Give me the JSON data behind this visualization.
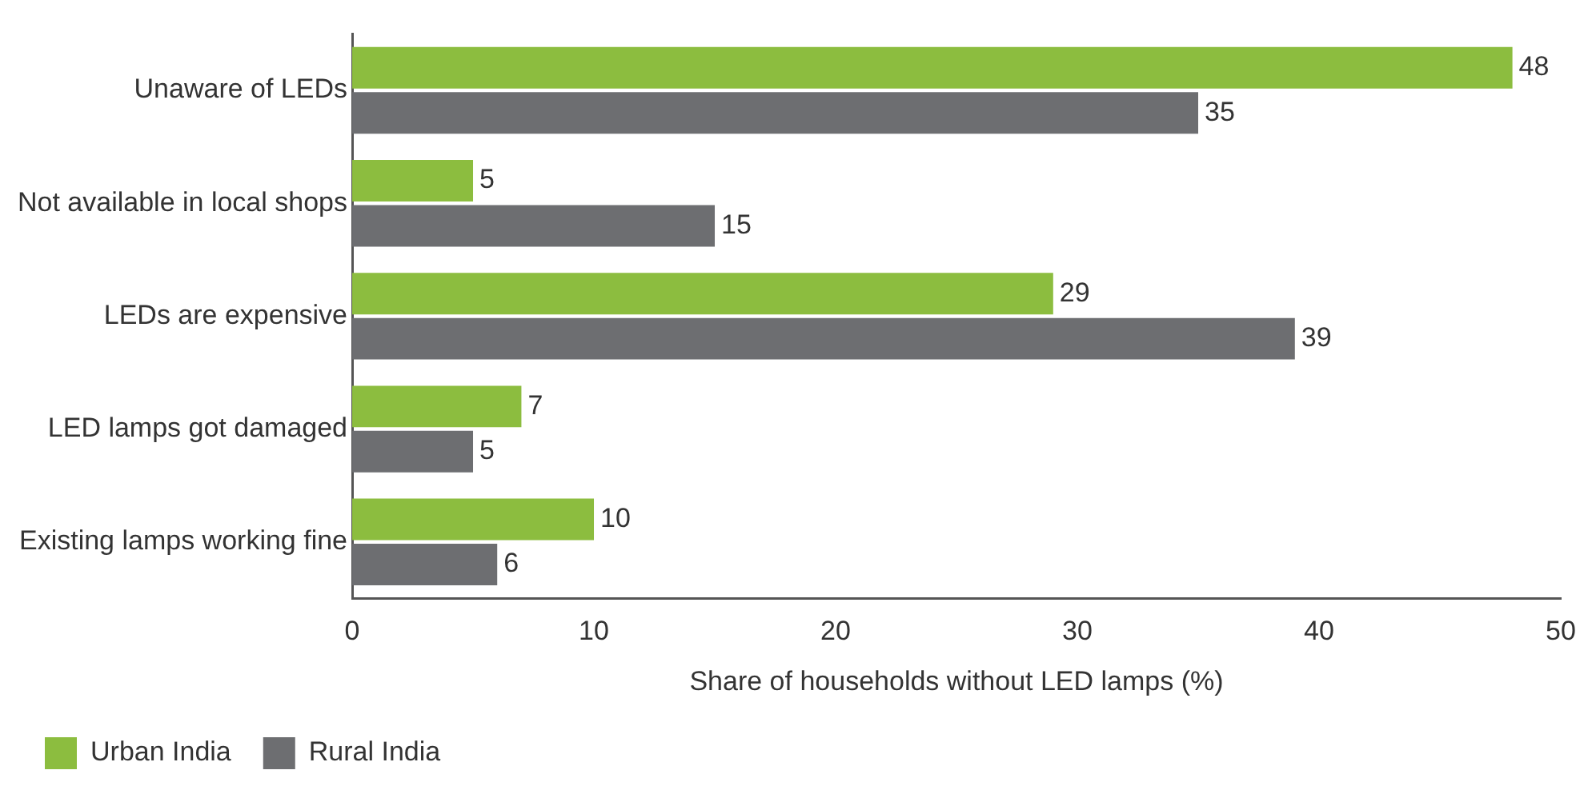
{
  "chart_data": {
    "type": "bar",
    "orientation": "horizontal",
    "xlabel": "Share of households without LED lamps (%)",
    "categories": [
      "Unaware of LEDs",
      "Not available in local shops",
      "LEDs are expensive",
      "LED lamps got damaged",
      "Existing lamps working fine"
    ],
    "series": [
      {
        "name": "Urban India",
        "color": "#8cbd3f",
        "values": [
          48,
          5,
          29,
          7,
          10
        ]
      },
      {
        "name": "Rural India",
        "color": "#6d6e71",
        "values": [
          35,
          15,
          39,
          5,
          6
        ]
      }
    ],
    "xlim": [
      0,
      50
    ],
    "xticks": [
      0,
      10,
      20,
      30,
      40,
      50
    ],
    "grid": false,
    "legend": "bottom left",
    "data_labels": true
  }
}
